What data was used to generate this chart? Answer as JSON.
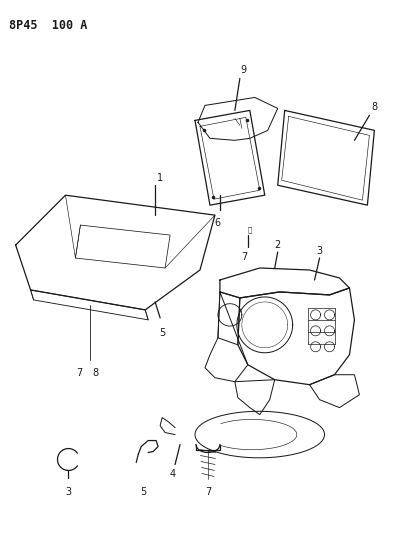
{
  "title": "8P45  100 A",
  "background_color": "#ffffff",
  "line_color": "#1a1a1a",
  "fig_width": 3.93,
  "fig_height": 5.33,
  "dpi": 100
}
